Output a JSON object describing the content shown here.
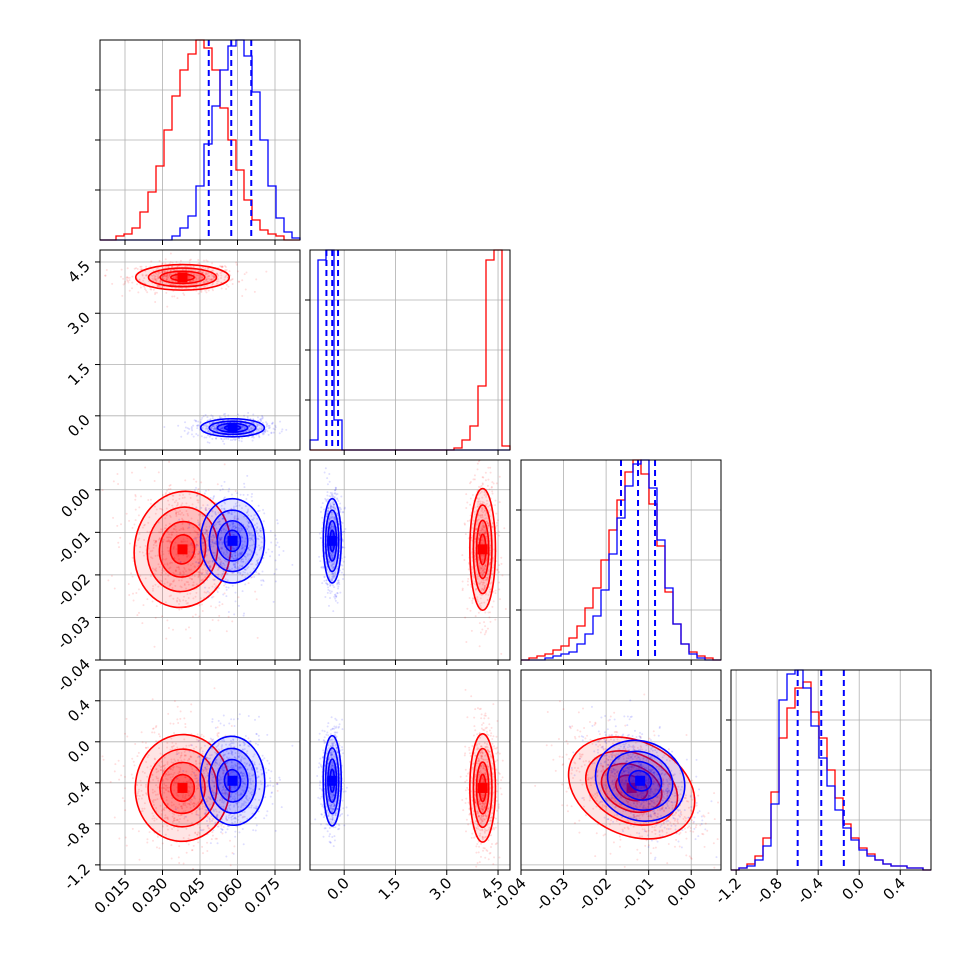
{
  "colors": {
    "series_a": "#ff0000",
    "series_b": "#0000ff",
    "grid": "#b0b0b0",
    "frame": "#000000"
  },
  "chart_data": {
    "type": "corner",
    "description_free": true,
    "parameters": [
      {
        "range": [
          0.005,
          0.085
        ],
        "ticks": [
          "0.015",
          "0.030",
          "0.045",
          "0.060",
          "0.075"
        ],
        "tick_values": [
          0.015,
          0.03,
          0.045,
          0.06,
          0.075
        ]
      },
      {
        "range": [
          -1.0,
          4.85
        ],
        "ticks": [
          "0.0",
          "1.5",
          "3.0",
          "4.5"
        ],
        "tick_values": [
          0.0,
          1.5,
          3.0,
          4.5
        ]
      },
      {
        "range": [
          -0.04,
          0.007
        ],
        "ticks": [
          "-0.04",
          "-0.03",
          "-0.02",
          "-0.01",
          "0.00"
        ],
        "tick_values": [
          -0.04,
          -0.03,
          -0.02,
          -0.01,
          0.0
        ]
      },
      {
        "range": [
          -1.25,
          0.7
        ],
        "ticks": [
          "-1.2",
          "-0.8",
          "-0.4",
          "0.0",
          "0.4"
        ],
        "tick_values": [
          -1.2,
          -0.8,
          -0.4,
          0.0,
          0.4
        ]
      }
    ],
    "series": [
      {
        "color": "red",
        "means": [
          0.038,
          4.05,
          -0.014,
          -0.45
        ],
        "sds": [
          0.0085,
          0.17,
          0.0065,
          0.24
        ],
        "hist1d": [
          {
            "edges_range": [
              0.005,
              0.085
            ],
            "counts": [
              0,
              0,
              0.02,
              0.03,
              0.06,
              0.14,
              0.24,
              0.37,
              0.55,
              0.72,
              0.85,
              0.93,
              1.0,
              0.96,
              0.85,
              0.66,
              0.5,
              0.35,
              0.2,
              0.1,
              0.05,
              0.03,
              0.02,
              0,
              0
            ]
          },
          {
            "edges_range": [
              -1.0,
              4.85
            ],
            "counts": [
              0,
              0,
              0,
              0,
              0,
              0,
              0,
              0,
              0,
              0,
              0,
              0,
              0,
              0,
              0,
              0,
              0,
              0,
              0.01,
              0.05,
              0.12,
              0.32,
              0.95,
              1.0,
              0.02
            ]
          },
          {
            "edges_range": [
              -0.04,
              0.007
            ],
            "counts": [
              0,
              0.01,
              0.02,
              0.03,
              0.05,
              0.07,
              0.11,
              0.17,
              0.26,
              0.36,
              0.5,
              0.65,
              0.8,
              0.94,
              1.0,
              0.93,
              0.78,
              0.57,
              0.34,
              0.18,
              0.08,
              0.04,
              0.02,
              0.01,
              0
            ]
          },
          {
            "edges_range": [
              -1.25,
              0.7
            ],
            "counts": [
              0,
              0.01,
              0.03,
              0.07,
              0.16,
              0.39,
              0.66,
              0.81,
              0.91,
              0.94,
              0.79,
              0.66,
              0.5,
              0.36,
              0.23,
              0.16,
              0.11,
              0.08,
              0.05,
              0.03,
              0.02,
              0.02,
              0.01,
              0.01,
              0
            ]
          }
        ],
        "correlations": {
          "0-2": -0.15,
          "0-3": -0.05,
          "2-3": -0.45
        }
      },
      {
        "color": "blue",
        "means": [
          0.058,
          -0.35,
          -0.012,
          -0.38
        ],
        "sds": [
          0.0058,
          0.12,
          0.0045,
          0.2
        ],
        "quantiles": [
          [
            0.0485,
            0.0575,
            0.0655
          ],
          [
            -0.52,
            -0.35,
            -0.18
          ],
          [
            -0.0165,
            -0.0125,
            -0.0085
          ],
          [
            -0.6,
            -0.37,
            -0.15
          ]
        ],
        "hist1d": [
          {
            "edges_range": [
              0.005,
              0.085
            ],
            "counts": [
              0,
              0,
              0,
              0,
              0,
              0,
              0,
              0,
              0,
              0.02,
              0.06,
              0.12,
              0.27,
              0.48,
              0.67,
              0.85,
              0.97,
              1.0,
              0.92,
              0.74,
              0.5,
              0.27,
              0.11,
              0.04,
              0.01
            ]
          },
          {
            "edges_range": [
              -1.0,
              4.85
            ],
            "counts": [
              0.05,
              0.95,
              1.0,
              0.15,
              0,
              0,
              0,
              0,
              0,
              0,
              0,
              0,
              0,
              0,
              0,
              0,
              0,
              0,
              0,
              0,
              0,
              0,
              0,
              0,
              0
            ]
          },
          {
            "edges_range": [
              -0.04,
              0.007
            ],
            "counts": [
              0,
              0,
              0,
              0.01,
              0.02,
              0.03,
              0.04,
              0.08,
              0.13,
              0.22,
              0.35,
              0.53,
              0.71,
              0.87,
              0.98,
              1.0,
              0.86,
              0.6,
              0.36,
              0.18,
              0.08,
              0.03,
              0.01,
              0,
              0
            ]
          },
          {
            "edges_range": [
              -1.25,
              0.7
            ],
            "counts": [
              0,
              0.01,
              0.02,
              0.05,
              0.12,
              0.33,
              0.85,
              0.98,
              1.0,
              0.91,
              0.72,
              0.56,
              0.42,
              0.3,
              0.21,
              0.15,
              0.1,
              0.07,
              0.05,
              0.03,
              0.02,
              0.02,
              0.01,
              0.01,
              0
            ]
          }
        ],
        "correlations": {
          "0-2": 0.0,
          "0-3": 0.05,
          "2-3": -0.45
        }
      }
    ],
    "grid": true
  }
}
